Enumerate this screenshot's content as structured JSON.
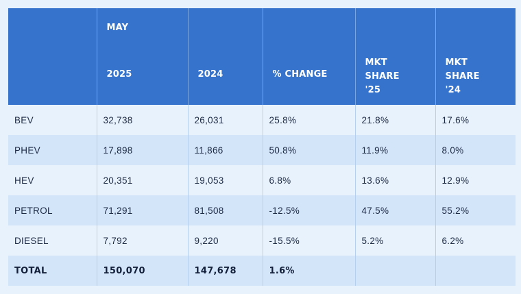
{
  "header": {
    "month": "MAY",
    "col_2025": "2025",
    "col_2024": "2024",
    "col_change": "% CHANGE",
    "mkt25_lines": [
      "MKT",
      "SHARE",
      "'25"
    ],
    "mkt24_lines": [
      "MKT",
      "SHARE",
      "'24"
    ]
  },
  "rows": [
    {
      "label": "BEV",
      "y2025": "32,738",
      "y2024": "26,031",
      "change": "25.8%",
      "share25": "21.8%",
      "share24": "17.6%"
    },
    {
      "label": "PHEV",
      "y2025": "17,898",
      "y2024": "11,866",
      "change": "50.8%",
      "share25": "11.9%",
      "share24": "8.0%"
    },
    {
      "label": "HEV",
      "y2025": "20,351",
      "y2024": "19,053",
      "change": "6.8%",
      "share25": "13.6%",
      "share24": "12.9%"
    },
    {
      "label": "PETROL",
      "y2025": "71,291",
      "y2024": "81,508",
      "change": "-12.5%",
      "share25": "47.5%",
      "share24": "55.2%"
    },
    {
      "label": "DIESEL",
      "y2025": "7,792",
      "y2024": "9,220",
      "change": "-15.5%",
      "share25": "5.2%",
      "share24": "6.2%"
    }
  ],
  "total": {
    "label": "TOTAL",
    "y2025": "150,070",
    "y2024": "147,678",
    "change": "1.6%",
    "share25": "",
    "share24": ""
  },
  "colors": {
    "header_bg": "#3573cc",
    "row_light": "#e8f2fc",
    "row_dark": "#d3e5f9"
  }
}
